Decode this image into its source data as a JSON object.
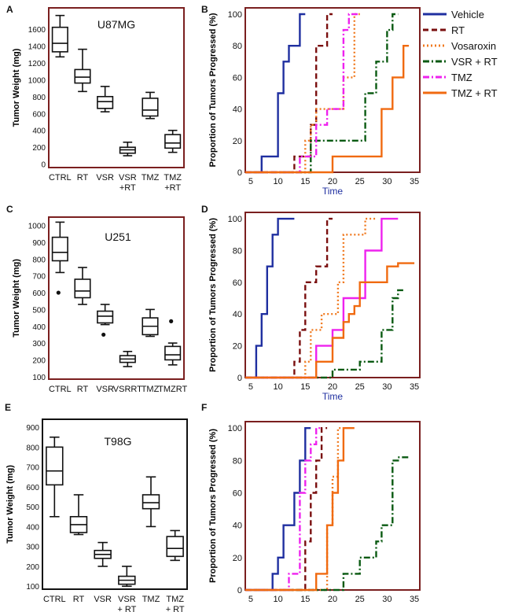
{
  "figure": {
    "legend": [
      {
        "label": "Vehicle",
        "color": "#1f2fa0",
        "dash": "solid"
      },
      {
        "label": "RT",
        "color": "#7a0f0f",
        "dash": "dash"
      },
      {
        "label": "Vosaroxin",
        "color": "#f07a20",
        "dash": "dot"
      },
      {
        "label": "VSR + RT",
        "color": "#0a5a12",
        "dash": "dashdot"
      },
      {
        "label": "TMZ",
        "color": "#ee22ee",
        "dash": "dashdot"
      },
      {
        "label": "TMZ + RT",
        "color": "#f06a10",
        "dash": "solid"
      }
    ]
  },
  "chart_data": [
    {
      "type": "box",
      "panel": "A",
      "title": "U87MG",
      "ylabel": "Tumor Weight (mg)",
      "frame_color": "#7a1f1f",
      "yticks": [
        0,
        200,
        400,
        600,
        800,
        1000,
        1200,
        1400,
        1600
      ],
      "ylim": [
        -40,
        1850
      ],
      "categories": [
        {
          "label": "CTRL",
          "label2": ""
        },
        {
          "label": "RT",
          "label2": ""
        },
        {
          "label": "VSR",
          "label2": ""
        },
        {
          "label": "VSR",
          "label2": "+RT"
        },
        {
          "label": "TMZ",
          "label2": ""
        },
        {
          "label": "TMZ",
          "label2": "+RT"
        }
      ],
      "boxes": [
        {
          "min": 1270,
          "q1": 1330,
          "median": 1430,
          "q3": 1620,
          "max": 1760
        },
        {
          "min": 860,
          "q1": 960,
          "median": 1030,
          "q3": 1120,
          "max": 1360
        },
        {
          "min": 620,
          "q1": 660,
          "median": 740,
          "q3": 800,
          "max": 920
        },
        {
          "min": 100,
          "q1": 130,
          "median": 170,
          "q3": 200,
          "max": 260
        },
        {
          "min": 540,
          "q1": 570,
          "median": 640,
          "q3": 780,
          "max": 850
        },
        {
          "min": 140,
          "q1": 190,
          "median": 250,
          "q3": 350,
          "max": 400
        }
      ]
    },
    {
      "type": "step",
      "panel": "B",
      "xlabel": "Time",
      "ylabel": "Proportion of Tumors Progressed (%)",
      "xticks": [
        5,
        10,
        15,
        20,
        25,
        30,
        35
      ],
      "xlim": [
        4,
        36
      ],
      "yticks": [
        0,
        20,
        40,
        60,
        80,
        100
      ],
      "ylim": [
        0,
        104
      ],
      "ytick_labels": [
        "0",
        "20",
        "40",
        "60",
        "80",
        "100"
      ],
      "series": [
        {
          "name": "Vehicle",
          "color": "#1f2fa0",
          "dash": "solid",
          "x": [
            4,
            7,
            7,
            10,
            10,
            11,
            11,
            12,
            12,
            14,
            14,
            15
          ],
          "y": [
            0,
            0,
            10,
            10,
            50,
            50,
            70,
            70,
            80,
            80,
            100,
            100
          ]
        },
        {
          "name": "RT",
          "color": "#7a0f0f",
          "dash": "dash",
          "x": [
            4,
            13,
            13,
            16,
            16,
            17,
            17,
            19,
            19,
            20
          ],
          "y": [
            0,
            0,
            10,
            10,
            30,
            30,
            80,
            80,
            100,
            100
          ]
        },
        {
          "name": "Vosaroxin",
          "color": "#f07a20",
          "dash": "dot",
          "x": [
            4,
            15,
            15,
            16,
            16,
            17,
            17,
            22,
            22,
            24,
            24,
            25
          ],
          "y": [
            0,
            0,
            20,
            20,
            30,
            30,
            40,
            40,
            60,
            60,
            100,
            100
          ]
        },
        {
          "name": "VSR + RT",
          "color": "#0a5a12",
          "dash": "dashdot",
          "x": [
            4,
            16,
            16,
            26,
            26,
            28,
            28,
            30,
            30,
            31,
            31,
            32
          ],
          "y": [
            0,
            0,
            20,
            20,
            50,
            50,
            70,
            70,
            90,
            90,
            100,
            100
          ]
        },
        {
          "name": "TMZ",
          "color": "#ee22ee",
          "dash": "dashdot",
          "x": [
            4,
            14,
            14,
            17,
            17,
            19,
            19,
            22,
            22,
            23,
            23,
            25
          ],
          "y": [
            0,
            0,
            10,
            10,
            30,
            30,
            40,
            40,
            90,
            90,
            100,
            100
          ]
        },
        {
          "name": "TMZ + RT",
          "color": "#f06a10",
          "dash": "solid",
          "x": [
            4,
            20,
            20,
            29,
            29,
            31,
            31,
            33,
            33,
            34
          ],
          "y": [
            0,
            0,
            10,
            10,
            40,
            40,
            60,
            60,
            80,
            80
          ]
        }
      ]
    },
    {
      "type": "box",
      "panel": "C",
      "title": "U251",
      "ylabel": "Tumor Weight (mg)",
      "frame_color": "#7a1f1f",
      "yticks": [
        100,
        200,
        300,
        400,
        500,
        600,
        700,
        800,
        900,
        1000
      ],
      "ylim": [
        85,
        1050
      ],
      "categories": [
        {
          "label": "CTRL",
          "label2": ""
        },
        {
          "label": "RT",
          "label2": ""
        },
        {
          "label": "VSR",
          "label2": ""
        },
        {
          "label": "VSRRT",
          "label2": ""
        },
        {
          "label": "TMZ",
          "label2": ""
        },
        {
          "label": "TMZRT",
          "label2": ""
        }
      ],
      "boxes": [
        {
          "min": 720,
          "q1": 790,
          "median": 840,
          "q3": 930,
          "max": 1020,
          "outliers": [
            600
          ]
        },
        {
          "min": 530,
          "q1": 570,
          "median": 610,
          "q3": 680,
          "max": 750
        },
        {
          "min": 410,
          "q1": 420,
          "median": 460,
          "q3": 490,
          "max": 530,
          "outliers": [
            350
          ]
        },
        {
          "min": 160,
          "q1": 185,
          "median": 205,
          "q3": 225,
          "max": 250
        },
        {
          "min": 340,
          "q1": 350,
          "median": 400,
          "q3": 450,
          "max": 500
        },
        {
          "min": 170,
          "q1": 200,
          "median": 230,
          "q3": 280,
          "max": 300,
          "outliers": [
            430
          ]
        }
      ]
    },
    {
      "type": "step",
      "panel": "D",
      "xlabel": "Time",
      "ylabel": "Proportion of Tumors Progressed (%)",
      "xticks": [
        5,
        10,
        15,
        20,
        25,
        30,
        35
      ],
      "xlim": [
        4,
        36
      ],
      "yticks": [
        0,
        20,
        40,
        60,
        80,
        100
      ],
      "ylim": [
        0,
        104
      ],
      "ytick_labels": [
        "0",
        "20",
        "40",
        "60",
        "80",
        "100"
      ],
      "series": [
        {
          "name": "Vehicle",
          "color": "#1f2fa0",
          "dash": "solid",
          "x": [
            4,
            6,
            6,
            7,
            7,
            8,
            8,
            9,
            9,
            10,
            10,
            13
          ],
          "y": [
            0,
            0,
            20,
            20,
            40,
            40,
            70,
            70,
            90,
            90,
            100,
            100
          ]
        },
        {
          "name": "RT",
          "color": "#7a0f0f",
          "dash": "dash",
          "x": [
            4,
            13,
            13,
            14,
            14,
            15,
            15,
            17,
            17,
            19,
            19,
            20
          ],
          "y": [
            0,
            0,
            10,
            10,
            30,
            30,
            60,
            60,
            70,
            70,
            100,
            100
          ]
        },
        {
          "name": "Vosaroxin",
          "color": "#f07a20",
          "dash": "dot",
          "x": [
            4,
            15,
            15,
            16,
            16,
            18,
            18,
            21,
            21,
            22,
            22,
            26,
            26,
            28
          ],
          "y": [
            0,
            0,
            10,
            10,
            30,
            30,
            40,
            40,
            60,
            60,
            90,
            90,
            100,
            100
          ]
        },
        {
          "name": "VSR + RT",
          "color": "#0a5a12",
          "dash": "dashdot",
          "x": [
            4,
            20,
            20,
            25,
            25,
            29,
            29,
            31,
            31,
            32,
            32,
            33
          ],
          "y": [
            0,
            0,
            5,
            5,
            10,
            10,
            30,
            30,
            50,
            50,
            55,
            55
          ]
        },
        {
          "name": "TMZ",
          "color": "#ee22ee",
          "dash": "solid",
          "x": [
            4,
            17,
            17,
            20,
            20,
            22,
            22,
            26,
            26,
            29,
            29,
            32
          ],
          "y": [
            0,
            0,
            20,
            20,
            30,
            30,
            50,
            50,
            80,
            80,
            100,
            100
          ]
        },
        {
          "name": "TMZ + RT",
          "color": "#f06a10",
          "dash": "solid",
          "x": [
            4,
            17,
            17,
            20,
            20,
            22,
            22,
            23,
            23,
            24,
            24,
            25,
            25,
            30,
            30,
            32,
            32,
            35
          ],
          "y": [
            0,
            0,
            10,
            10,
            25,
            25,
            35,
            35,
            40,
            40,
            45,
            45,
            60,
            60,
            70,
            70,
            72,
            72
          ]
        }
      ]
    },
    {
      "type": "box",
      "panel": "E",
      "title": "T98G",
      "ylabel": "Tumor Weight (mg)",
      "frame_color": "#111111",
      "yticks": [
        100,
        200,
        300,
        400,
        500,
        600,
        700,
        800,
        900
      ],
      "ylim": [
        85,
        940
      ],
      "categories": [
        {
          "label": "CTRL",
          "label2": ""
        },
        {
          "label": "RT",
          "label2": ""
        },
        {
          "label": "VSR",
          "label2": ""
        },
        {
          "label": "VSR",
          "label2": "+ RT"
        },
        {
          "label": "TMZ",
          "label2": ""
        },
        {
          "label": "TMZ",
          "label2": "+ RT"
        }
      ],
      "boxes": [
        {
          "min": 450,
          "q1": 610,
          "median": 680,
          "q3": 800,
          "max": 850
        },
        {
          "min": 360,
          "q1": 370,
          "median": 410,
          "q3": 450,
          "max": 560
        },
        {
          "min": 200,
          "q1": 240,
          "median": 260,
          "q3": 280,
          "max": 320
        },
        {
          "min": 100,
          "q1": 110,
          "median": 130,
          "q3": 150,
          "max": 200
        },
        {
          "min": 400,
          "q1": 490,
          "median": 520,
          "q3": 560,
          "max": 650
        },
        {
          "min": 230,
          "q1": 250,
          "median": 290,
          "q3": 350,
          "max": 380
        }
      ]
    },
    {
      "type": "step",
      "panel": "F",
      "xlabel": "",
      "ylabel": "Proportion of Tumors Progressed (%)",
      "xticks": [
        5,
        10,
        15,
        20,
        25,
        30,
        35
      ],
      "xlim": [
        4,
        36
      ],
      "yticks": [
        0,
        20,
        40,
        60,
        80,
        100
      ],
      "ylim": [
        0,
        104
      ],
      "ytick_labels": [
        "0",
        "20",
        "40",
        "60",
        "80",
        "100"
      ],
      "series": [
        {
          "name": "Vehicle",
          "color": "#1f2fa0",
          "dash": "solid",
          "x": [
            4,
            9,
            9,
            10,
            10,
            11,
            11,
            13,
            13,
            14,
            14,
            15,
            15,
            16
          ],
          "y": [
            0,
            0,
            10,
            10,
            20,
            20,
            40,
            40,
            60,
            60,
            80,
            80,
            100,
            100
          ]
        },
        {
          "name": "RT",
          "color": "#7a0f0f",
          "dash": "dash",
          "x": [
            4,
            15,
            15,
            16,
            16,
            17,
            17,
            18,
            18,
            19
          ],
          "y": [
            0,
            0,
            30,
            30,
            60,
            60,
            80,
            80,
            100,
            100
          ]
        },
        {
          "name": "Vosaroxin",
          "color": "#f07a20",
          "dash": "dot",
          "x": [
            4,
            19,
            19,
            20,
            20,
            21,
            21,
            22
          ],
          "y": [
            0,
            0,
            40,
            40,
            70,
            70,
            100,
            100
          ]
        },
        {
          "name": "VSR + RT",
          "color": "#0a5a12",
          "dash": "dashdot",
          "x": [
            4,
            22,
            22,
            25,
            25,
            28,
            28,
            29,
            29,
            31,
            31,
            32,
            32,
            33,
            33,
            34
          ],
          "y": [
            0,
            0,
            10,
            10,
            20,
            20,
            30,
            30,
            40,
            40,
            80,
            80,
            82,
            82,
            82,
            82
          ]
        },
        {
          "name": "TMZ",
          "color": "#ee22ee",
          "dash": "dashdot",
          "x": [
            4,
            12,
            12,
            14,
            14,
            15,
            15,
            16,
            16,
            17,
            17,
            18
          ],
          "y": [
            0,
            0,
            10,
            10,
            60,
            60,
            80,
            80,
            90,
            90,
            100,
            100
          ]
        },
        {
          "name": "TMZ + RT",
          "color": "#f06a10",
          "dash": "solid",
          "x": [
            4,
            17,
            17,
            19,
            19,
            20,
            20,
            21,
            21,
            22,
            22,
            24
          ],
          "y": [
            0,
            0,
            10,
            10,
            40,
            40,
            60,
            60,
            80,
            80,
            100,
            100
          ]
        }
      ]
    }
  ]
}
